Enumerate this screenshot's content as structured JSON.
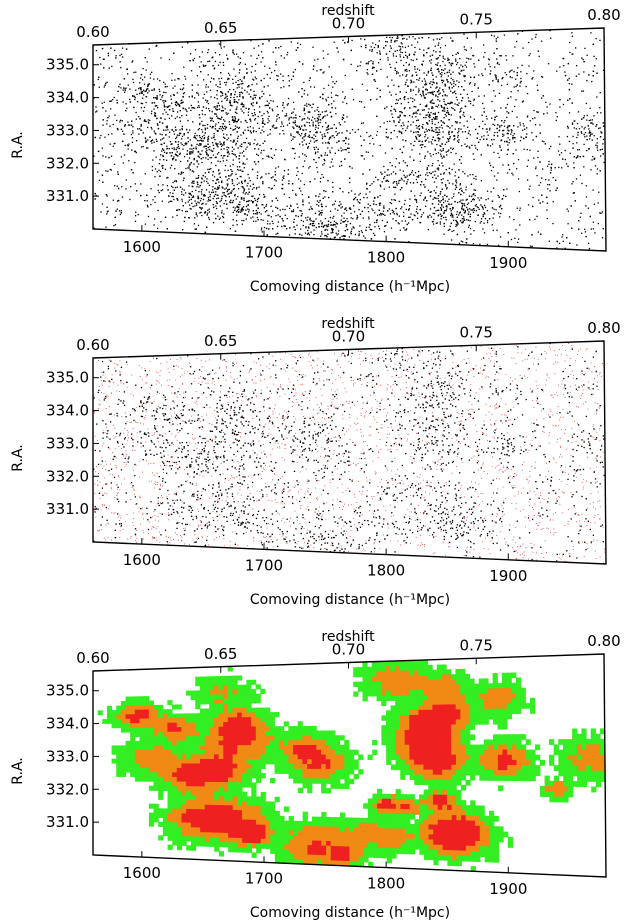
{
  "chart_data": [
    {
      "type": "scatter",
      "panel": "galaxies",
      "top_axis": {
        "label": "redshift",
        "ticks": [
          "0.60",
          "0.65",
          "0.70",
          "0.75",
          "0.80"
        ],
        "range": [
          0.6,
          0.8
        ]
      },
      "bottom_axis": {
        "label": "Comoving distance (h⁻¹Mpc)",
        "ticks": [
          "1600",
          "1700",
          "1800",
          "1900"
        ],
        "range": [
          1560,
          1980
        ]
      },
      "y_axis": {
        "label": "R.A.",
        "ticks": [
          "335.0",
          "334.0",
          "333.0",
          "332.0",
          "331.0"
        ],
        "range": [
          330.0,
          335.6
        ]
      },
      "series": [
        {
          "color": "#000000",
          "marker": "dot"
        }
      ]
    },
    {
      "type": "scatter",
      "panel": "galaxies-and-randoms",
      "top_axis": {
        "label": "redshift",
        "ticks": [
          "0.60",
          "0.65",
          "0.70",
          "0.75",
          "0.80"
        ],
        "range": [
          0.6,
          0.8
        ]
      },
      "bottom_axis": {
        "label": "Comoving distance (h⁻¹Mpc)",
        "ticks": [
          "1600",
          "1700",
          "1800",
          "1900"
        ],
        "range": [
          1560,
          1980
        ]
      },
      "y_axis": {
        "label": "R.A.",
        "ticks": [
          "335.0",
          "334.0",
          "333.0",
          "332.0",
          "331.0"
        ],
        "range": [
          330.0,
          335.6
        ]
      },
      "series": [
        {
          "color": "#000000",
          "marker": "dot"
        },
        {
          "color": "#e04040",
          "marker": "dot"
        }
      ]
    },
    {
      "type": "heatmap",
      "panel": "density-field",
      "top_axis": {
        "label": "redshift",
        "ticks": [
          "0.60",
          "0.65",
          "0.70",
          "0.75",
          "0.80"
        ],
        "range": [
          0.6,
          0.8
        ]
      },
      "bottom_axis": {
        "label": "Comoving distance (h⁻¹Mpc)",
        "ticks": [
          "1600",
          "1700",
          "1800",
          "1900"
        ],
        "range": [
          1560,
          1980
        ]
      },
      "y_axis": {
        "label": "R.A.",
        "ticks": [
          "335.0",
          "334.0",
          "333.0",
          "332.0",
          "331.0"
        ],
        "range": [
          330.0,
          335.6
        ]
      },
      "colors": [
        "#33ee22",
        "#f08a14",
        "#ee2020"
      ]
    }
  ]
}
